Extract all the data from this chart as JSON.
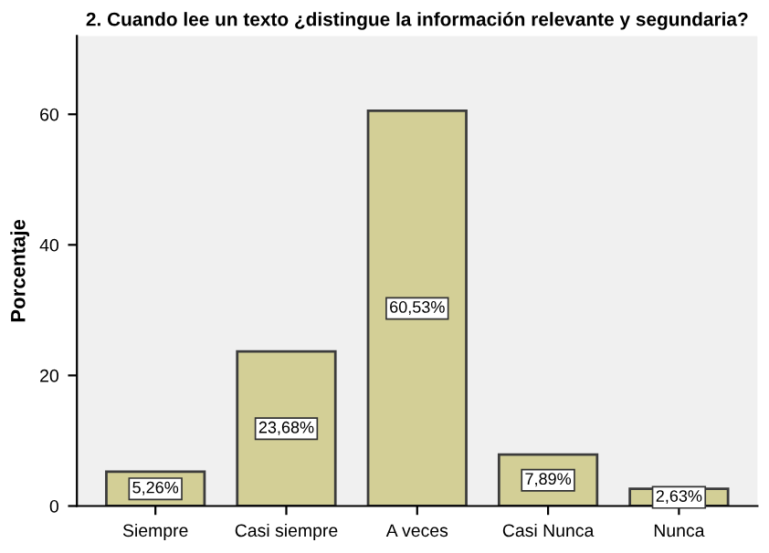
{
  "chart_data": {
    "type": "bar",
    "title": "2. Cuando lee un texto ¿distingue la información relevante y segundaria?",
    "ylabel": "Porcentaje",
    "categories": [
      "Siempre",
      "Casi siempre",
      "A veces",
      "Casi Nunca",
      "Nunca"
    ],
    "values": [
      5.26,
      23.68,
      60.53,
      7.89,
      2.63
    ],
    "value_labels": [
      "5,26%",
      "23,68%",
      "60,53%",
      "7,89%",
      "2,63%"
    ],
    "color": "#d3cf96",
    "ylim": [
      0,
      72
    ],
    "yticks": [
      0,
      20,
      40,
      60
    ],
    "grid": false
  }
}
